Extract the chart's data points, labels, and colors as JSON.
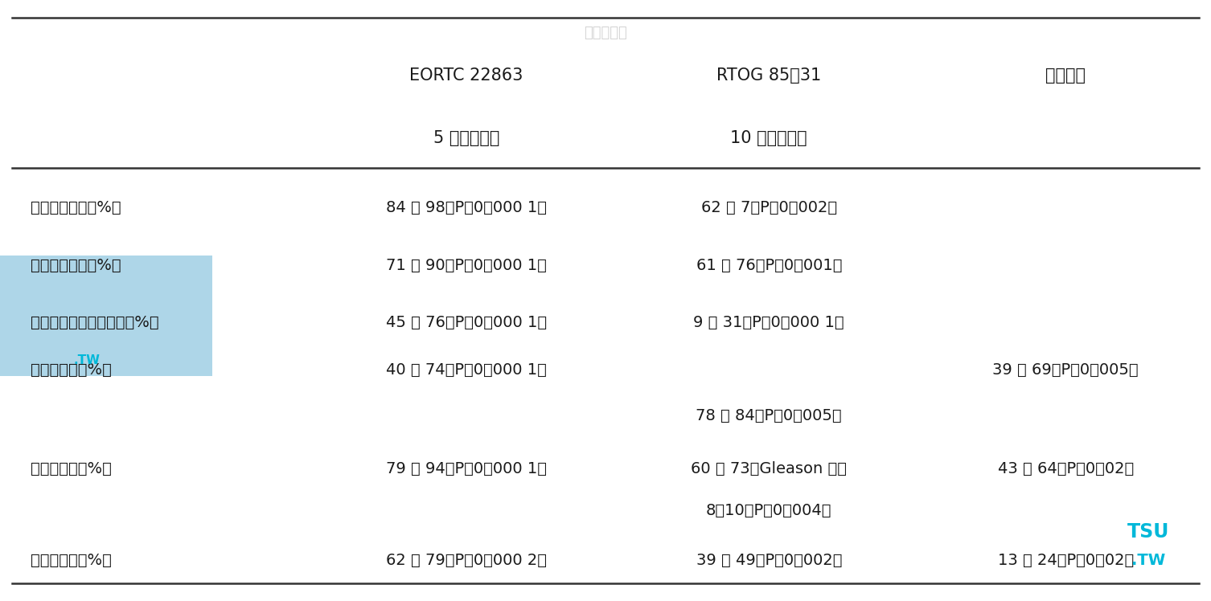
{
  "bg_color": "#ffffff",
  "text_color": "#1a1a1a",
  "line_color": "#333333",
  "watermark_color": "#cccccc",
  "tsu_color": "#00b8d9",
  "tw_color": "#00b8d9",
  "blue_rect_color": "#aed6e8",
  "header1_texts": [
    "EORTC 22863",
    "RTOG 85－31",
    "瑞典研究"
  ],
  "header2_texts": [
    "5 年研究成果",
    "10 年研究成果"
  ],
  "watermark_text": "大山医学院",
  "rows": [
    {
      "label": "没有局部复发（%）",
      "col1": "84 比 98（P＜0．000 1）",
      "col2": "62 比 7（P＝0．002）",
      "col3": ""
    },
    {
      "label": "没有癌症转移（%）",
      "col1": "71 比 90（P＜0．000 1）",
      "col2": "61 比 76（P＜0．001）",
      "col3": ""
    },
    {
      "label": "前列腺特异性抗原成功（%）",
      "col1": "45 比 76（P＜0．000 1）",
      "col2": "9 比 31（P＜0．000 1）",
      "col3": ""
    },
    {
      "label": "临床存活率（%）",
      "col1": "40 比 74（P＜0．000 1）",
      "col2": "",
      "col3": "39 比 69（P＝0．005）"
    },
    {
      "label": "",
      "col1": "",
      "col2": "78 比 84（P＝0．005）",
      "col3": ""
    },
    {
      "label": "特定存活率（%）",
      "col1": "79 比 94（P＝0．000 1）",
      "col2": "60 比 73（Gleason 评分",
      "col3": "43 比 64（P＝0．02）"
    },
    {
      "label": "",
      "col1": "",
      "col2": "8～10，P＝0．004）",
      "col3": ""
    },
    {
      "label": "总体存活率（%）",
      "col1": "62 比 79（P＝0．000 2）",
      "col2": "39 比 49（P＝0．002）",
      "col3": "13 比 24（P＝0．02）"
    }
  ],
  "font_size_header": 15,
  "font_size_data": 14,
  "font_size_watermark": 13,
  "font_size_tsu": 17
}
